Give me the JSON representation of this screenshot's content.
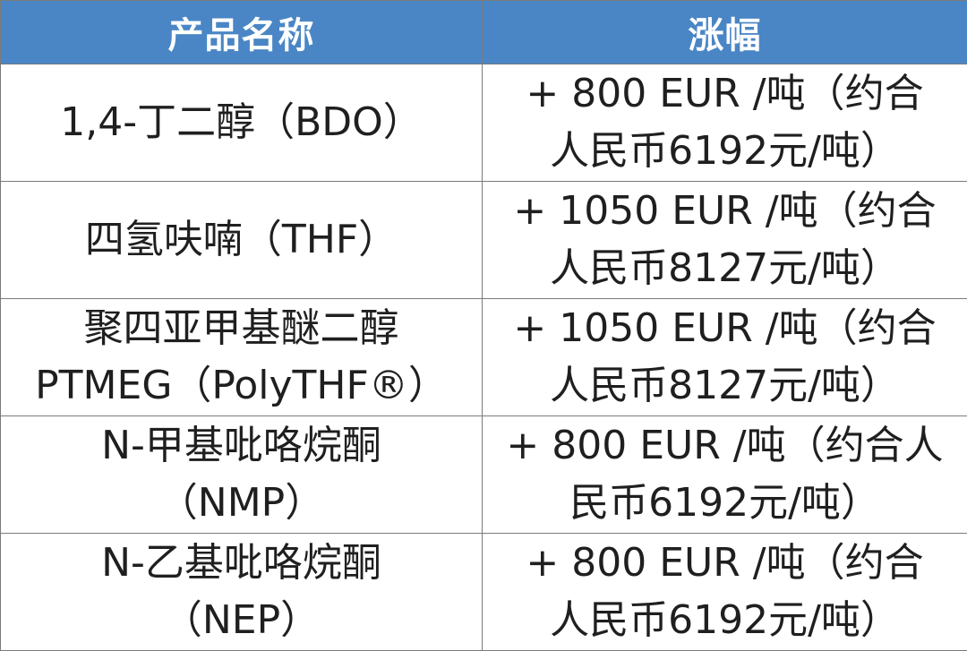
{
  "header": {
    "col_product": "产品名称",
    "col_increase": "涨幅"
  },
  "rows": [
    {
      "product_lines": [
        "1,4-丁二醇（BDO）"
      ],
      "increase_lines": [
        "+ 800 EUR /吨（约合",
        "人民币6192元/吨）"
      ]
    },
    {
      "product_lines": [
        "四氢呋喃（THF）"
      ],
      "increase_lines": [
        "+ 1050 EUR /吨（约合",
        "人民币8127元/吨）"
      ]
    },
    {
      "product_lines": [
        "聚四亚甲基醚二醇",
        "PTMEG（PolyTHF®）"
      ],
      "increase_lines": [
        "+ 1050 EUR /吨（约合",
        "人民币8127元/吨）"
      ]
    },
    {
      "product_lines": [
        "N-甲基吡咯烷酮",
        "（NMP）"
      ],
      "increase_lines": [
        "+ 800 EUR /吨（约合人",
        "民币6192元/吨）"
      ]
    },
    {
      "product_lines": [
        "N-乙基吡咯烷酮",
        "（NEP）"
      ],
      "increase_lines": [
        "+ 800 EUR /吨（约合",
        "人民币6192元/吨）"
      ]
    }
  ]
}
